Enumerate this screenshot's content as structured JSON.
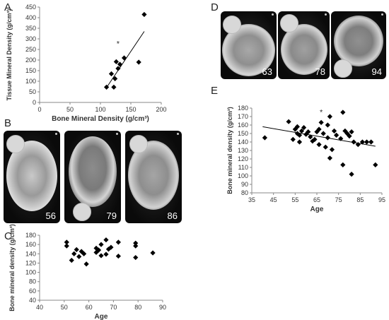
{
  "panels": {
    "a": "A",
    "b": "B",
    "c": "C",
    "d": "D",
    "e": "E"
  },
  "chart_data": [
    {
      "id": "A",
      "type": "scatter",
      "xlabel": "Bone Mineral Density (g/cm³)",
      "ylabel": "Tissue Mineral Density (g/cm³)",
      "xlim": [
        0,
        200
      ],
      "ylim": [
        0,
        450
      ],
      "xticks": [
        0,
        50,
        100,
        150,
        200
      ],
      "yticks": [
        0,
        50,
        100,
        150,
        200,
        250,
        300,
        350,
        400,
        450
      ],
      "grid": false,
      "points": [
        {
          "x": 110,
          "y": 72
        },
        {
          "x": 118,
          "y": 135
        },
        {
          "x": 122,
          "y": 72
        },
        {
          "x": 124,
          "y": 112
        },
        {
          "x": 126,
          "y": 192
        },
        {
          "x": 129,
          "y": 160
        },
        {
          "x": 132,
          "y": 180
        },
        {
          "x": 139,
          "y": 210
        },
        {
          "x": 163,
          "y": 190
        },
        {
          "x": 172,
          "y": 415
        }
      ],
      "trendline": {
        "x": [
          110,
          172
        ],
        "y": [
          70,
          335
        ]
      },
      "annotations": [
        {
          "text": "*",
          "x": 129,
          "y": 265
        }
      ]
    },
    {
      "id": "C",
      "type": "scatter",
      "xlabel": "Age",
      "ylabel": "Bone mineral density (g/cm³)",
      "xlim": [
        40,
        90
      ],
      "ylim": [
        40,
        180
      ],
      "xticks": [
        40,
        50,
        60,
        70,
        80,
        90
      ],
      "yticks": [
        40,
        60,
        80,
        100,
        120,
        140,
        160,
        180
      ],
      "grid": false,
      "points": [
        {
          "x": 51,
          "y": 165
        },
        {
          "x": 51,
          "y": 157
        },
        {
          "x": 53,
          "y": 126
        },
        {
          "x": 54,
          "y": 140
        },
        {
          "x": 55,
          "y": 149
        },
        {
          "x": 56,
          "y": 134
        },
        {
          "x": 57,
          "y": 145
        },
        {
          "x": 58,
          "y": 140
        },
        {
          "x": 59,
          "y": 118
        },
        {
          "x": 63,
          "y": 152
        },
        {
          "x": 63,
          "y": 143
        },
        {
          "x": 64,
          "y": 148
        },
        {
          "x": 65,
          "y": 136
        },
        {
          "x": 65,
          "y": 160
        },
        {
          "x": 67,
          "y": 170
        },
        {
          "x": 67,
          "y": 139
        },
        {
          "x": 68,
          "y": 150
        },
        {
          "x": 69,
          "y": 154
        },
        {
          "x": 72,
          "y": 165
        },
        {
          "x": 72,
          "y": 135
        },
        {
          "x": 79,
          "y": 163
        },
        {
          "x": 79,
          "y": 157
        },
        {
          "x": 79,
          "y": 132
        },
        {
          "x": 86,
          "y": 142
        }
      ]
    },
    {
      "id": "E",
      "type": "scatter",
      "xlabel": "Age",
      "ylabel": "Bone mineral density (g/cm³)",
      "xlim": [
        35,
        95
      ],
      "ylim": [
        80,
        180
      ],
      "xticks": [
        35,
        45,
        55,
        65,
        75,
        85,
        95
      ],
      "yticks": [
        80,
        90,
        100,
        110,
        120,
        130,
        140,
        150,
        160,
        170,
        180
      ],
      "grid": false,
      "points": [
        {
          "x": 41,
          "y": 145
        },
        {
          "x": 52,
          "y": 164
        },
        {
          "x": 54,
          "y": 143
        },
        {
          "x": 55,
          "y": 155
        },
        {
          "x": 56,
          "y": 150
        },
        {
          "x": 56,
          "y": 158
        },
        {
          "x": 57,
          "y": 148
        },
        {
          "x": 57,
          "y": 140
        },
        {
          "x": 58,
          "y": 153
        },
        {
          "x": 59,
          "y": 157
        },
        {
          "x": 60,
          "y": 149
        },
        {
          "x": 61,
          "y": 152
        },
        {
          "x": 62,
          "y": 146
        },
        {
          "x": 63,
          "y": 141
        },
        {
          "x": 64,
          "y": 143
        },
        {
          "x": 65,
          "y": 152
        },
        {
          "x": 66,
          "y": 137
        },
        {
          "x": 66,
          "y": 155
        },
        {
          "x": 67,
          "y": 163
        },
        {
          "x": 68,
          "y": 150
        },
        {
          "x": 69,
          "y": 134
        },
        {
          "x": 70,
          "y": 145
        },
        {
          "x": 70,
          "y": 160
        },
        {
          "x": 71,
          "y": 121
        },
        {
          "x": 71,
          "y": 170
        },
        {
          "x": 72,
          "y": 131
        },
        {
          "x": 73,
          "y": 153
        },
        {
          "x": 74,
          "y": 148
        },
        {
          "x": 76,
          "y": 144
        },
        {
          "x": 77,
          "y": 175
        },
        {
          "x": 77,
          "y": 113
        },
        {
          "x": 78,
          "y": 153
        },
        {
          "x": 79,
          "y": 150
        },
        {
          "x": 80,
          "y": 147
        },
        {
          "x": 81,
          "y": 152
        },
        {
          "x": 81,
          "y": 102
        },
        {
          "x": 82,
          "y": 140
        },
        {
          "x": 84,
          "y": 137
        },
        {
          "x": 86,
          "y": 140
        },
        {
          "x": 88,
          "y": 140
        },
        {
          "x": 90,
          "y": 140
        },
        {
          "x": 92,
          "y": 113
        }
      ],
      "trendline": {
        "x": [
          40,
          92
        ],
        "y": [
          158,
          135
        ]
      },
      "annotations": [
        {
          "text": "*",
          "x": 67,
          "y": 172
        }
      ]
    }
  ],
  "photos": {
    "b": [
      {
        "age": "56"
      },
      {
        "age": "79"
      },
      {
        "age": "86"
      }
    ],
    "d": [
      {
        "age": "63"
      },
      {
        "age": "78"
      },
      {
        "age": "94"
      }
    ]
  }
}
